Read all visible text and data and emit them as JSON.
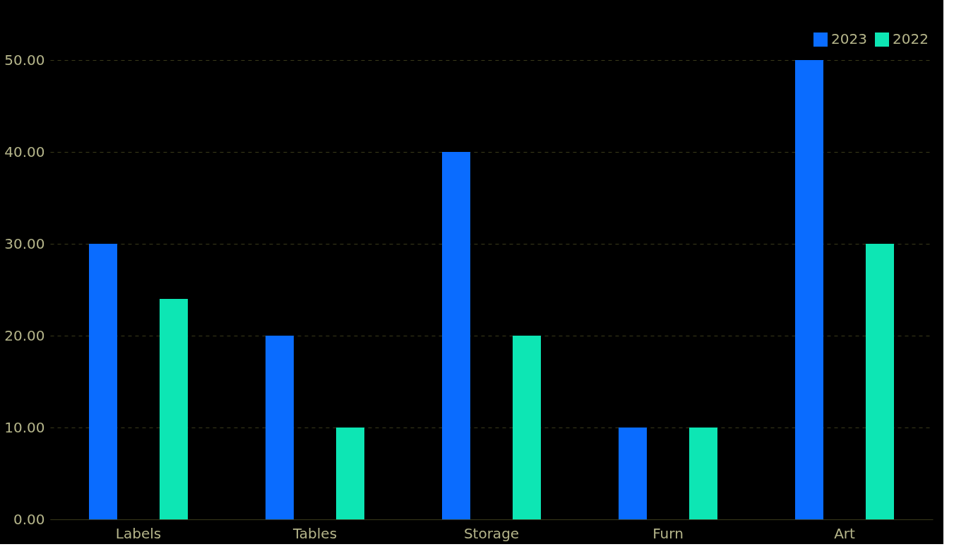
{
  "chart_data": {
    "type": "bar",
    "categories": [
      "Labels",
      "Tables",
      "Storage",
      "Furn",
      "Art"
    ],
    "series": [
      {
        "name": "2023",
        "color": "#0a6cff",
        "values": [
          30,
          20,
          40,
          10,
          50
        ]
      },
      {
        "name": "2022",
        "color": "#0de6b4",
        "values": [
          24,
          10,
          20,
          10,
          30
        ]
      }
    ],
    "ylim": [
      0,
      50
    ],
    "yticks": [
      {
        "value": 0,
        "label": "0.00"
      },
      {
        "value": 10,
        "label": "10.00"
      },
      {
        "value": 20,
        "label": "20.00"
      },
      {
        "value": 30,
        "label": "30.00"
      },
      {
        "value": 40,
        "label": "40.00"
      },
      {
        "value": 50,
        "label": "50.00"
      }
    ],
    "grid": "y",
    "legend": "top right"
  }
}
